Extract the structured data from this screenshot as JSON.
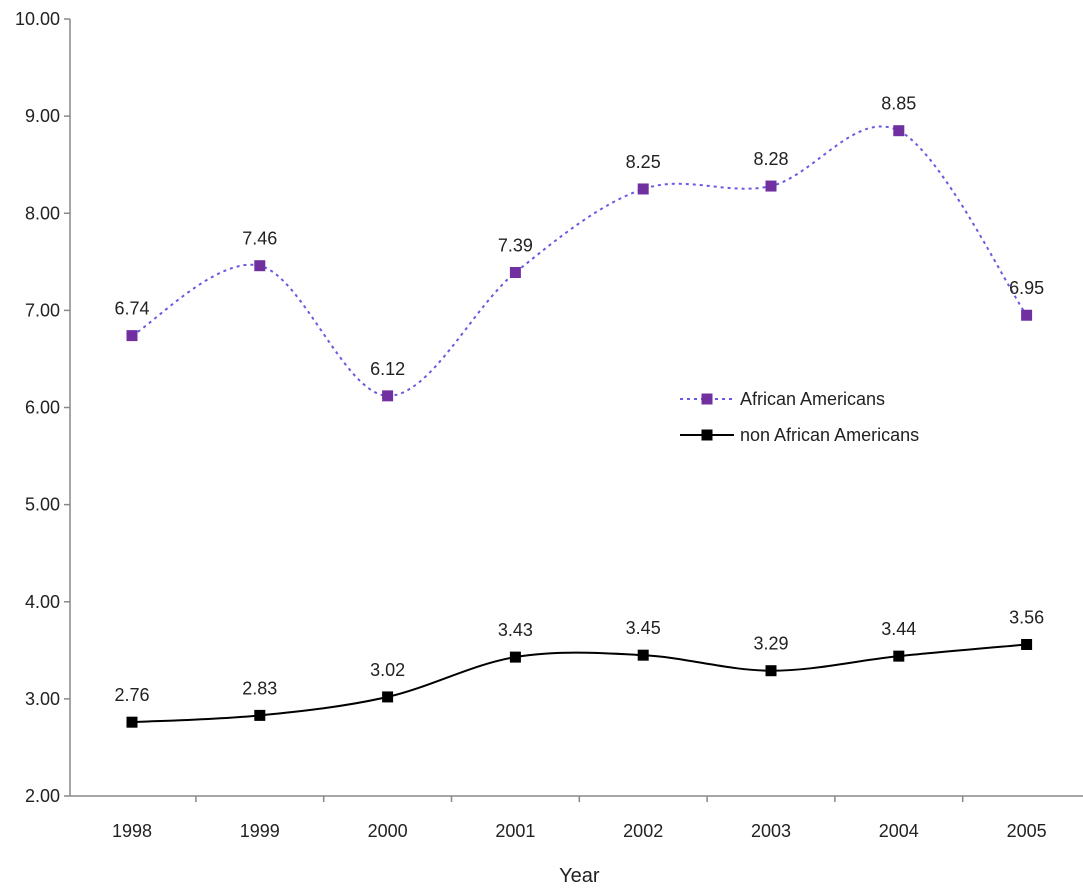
{
  "chart_data": {
    "type": "line",
    "title": "",
    "xlabel": "Year",
    "ylabel": "",
    "ylim": [
      2.0,
      10.0
    ],
    "ytick_labels": [
      "2.00",
      "3.00",
      "4.00",
      "5.00",
      "6.00",
      "7.00",
      "8.00",
      "9.00",
      "10.00"
    ],
    "ytick_values": [
      2,
      3,
      4,
      5,
      6,
      7,
      8,
      9,
      10
    ],
    "categories": [
      "1998",
      "1999",
      "2000",
      "2001",
      "2002",
      "2003",
      "2004",
      "2005"
    ],
    "grid": false,
    "legend_position": "center-right",
    "series": [
      {
        "name": "African Americans",
        "values": [
          6.74,
          7.46,
          6.12,
          7.39,
          8.25,
          8.28,
          8.85,
          6.95
        ],
        "labels": [
          "6.74",
          "7.46",
          "6.12",
          "7.39",
          "8.25",
          "8.28",
          "8.85",
          "6.95"
        ],
        "color": "#7030a0",
        "line_color": "#6a5ae0",
        "line_style": "dotted",
        "marker": "square"
      },
      {
        "name": "non African Americans",
        "values": [
          2.76,
          2.83,
          3.02,
          3.43,
          3.45,
          3.29,
          3.44,
          3.56
        ],
        "labels": [
          "2.76",
          "2.83",
          "3.02",
          "3.43",
          "3.45",
          "3.29",
          "3.44",
          "3.56"
        ],
        "color": "#000000",
        "line_color": "#000000",
        "line_style": "solid",
        "marker": "square"
      }
    ]
  }
}
